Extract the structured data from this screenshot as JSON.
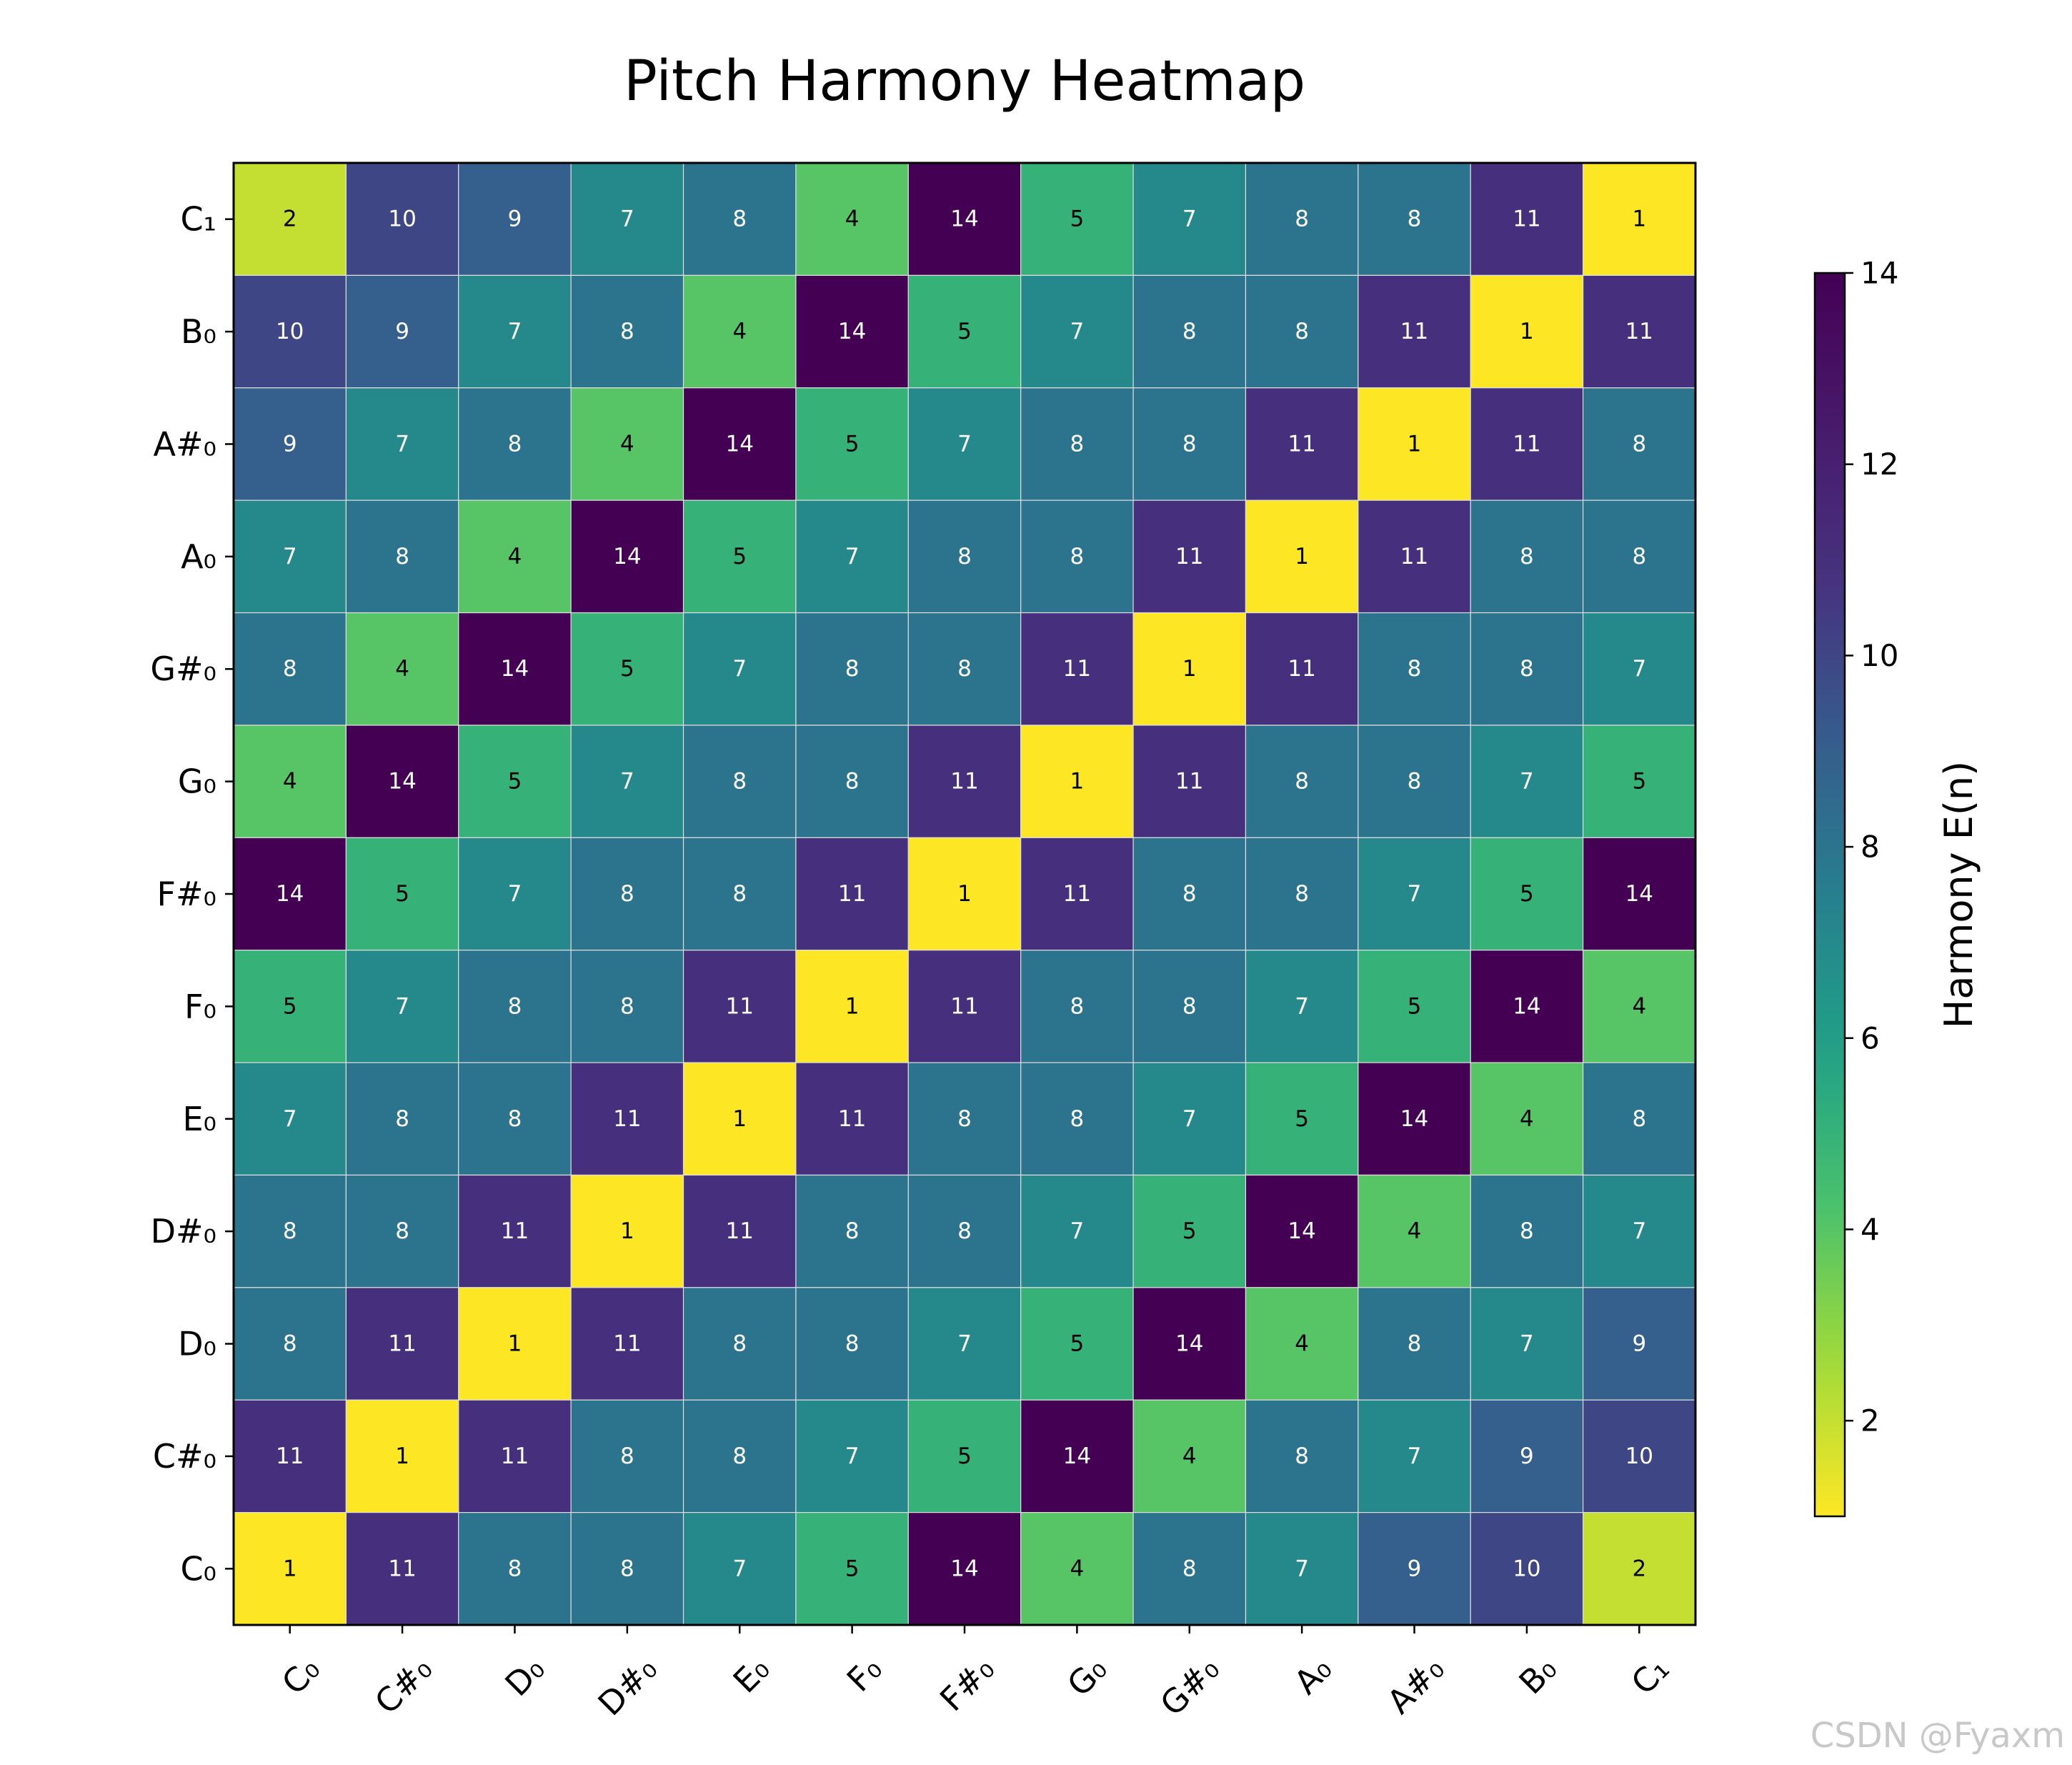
{
  "chart_data": {
    "type": "heatmap",
    "title": "Pitch Harmony Heatmap",
    "x_categories": [
      "C₀",
      "C#₀",
      "D₀",
      "D#₀",
      "E₀",
      "F₀",
      "F#₀",
      "G₀",
      "G#₀",
      "A₀",
      "A#₀",
      "B₀",
      "C₁"
    ],
    "y_categories": [
      "C₁",
      "B₀",
      "A#₀",
      "A₀",
      "G#₀",
      "G₀",
      "F#₀",
      "F₀",
      "E₀",
      "D#₀",
      "D₀",
      "C#₀",
      "C₀"
    ],
    "values": [
      [
        2,
        10,
        9,
        7,
        8,
        4,
        14,
        5,
        7,
        8,
        8,
        11,
        1
      ],
      [
        10,
        9,
        7,
        8,
        4,
        14,
        5,
        7,
        8,
        8,
        11,
        1,
        11
      ],
      [
        9,
        7,
        8,
        4,
        14,
        5,
        7,
        8,
        8,
        11,
        1,
        11,
        8
      ],
      [
        7,
        8,
        4,
        14,
        5,
        7,
        8,
        8,
        11,
        1,
        11,
        8,
        8
      ],
      [
        8,
        4,
        14,
        5,
        7,
        8,
        8,
        11,
        1,
        11,
        8,
        8,
        7
      ],
      [
        4,
        14,
        5,
        7,
        8,
        8,
        11,
        1,
        11,
        8,
        8,
        7,
        5
      ],
      [
        14,
        5,
        7,
        8,
        8,
        11,
        1,
        11,
        8,
        8,
        7,
        5,
        14
      ],
      [
        5,
        7,
        8,
        8,
        11,
        1,
        11,
        8,
        8,
        7,
        5,
        14,
        4
      ],
      [
        7,
        8,
        8,
        11,
        1,
        11,
        8,
        8,
        7,
        5,
        14,
        4,
        8
      ],
      [
        8,
        8,
        11,
        1,
        11,
        8,
        8,
        7,
        5,
        14,
        4,
        8,
        7
      ],
      [
        8,
        11,
        1,
        11,
        8,
        8,
        7,
        5,
        14,
        4,
        8,
        7,
        9
      ],
      [
        11,
        1,
        11,
        8,
        8,
        7,
        5,
        14,
        4,
        8,
        7,
        9,
        10
      ],
      [
        1,
        11,
        8,
        8,
        7,
        5,
        14,
        4,
        8,
        7,
        9,
        10,
        2
      ]
    ],
    "colormap": "viridis_r",
    "vmin": 1,
    "vmax": 14,
    "colorbar": {
      "label": "Harmony E(n)",
      "ticks": [
        2,
        4,
        6,
        8,
        10,
        12,
        14
      ]
    },
    "grid": true
  },
  "watermark": "CSDN @Fyaxm"
}
